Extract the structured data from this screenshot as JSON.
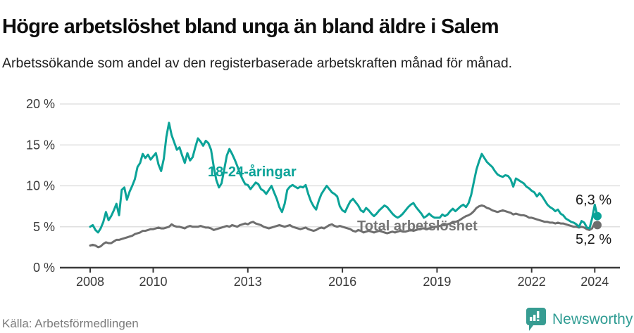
{
  "header": {
    "title": "Högre arbetslöshet bland unga än bland äldre i Salem",
    "subtitle": "Arbetssökande som andel av den registerbaserade arbetskraften månad för månad."
  },
  "footer": {
    "source": "Källa: Arbetsförmedlingen",
    "brand": "Newsworthy"
  },
  "colors": {
    "youth_line": "#0ba398",
    "total_line": "#6e6e6e",
    "grid": "#dcdcdc",
    "axis": "#3a3a3a",
    "tick_text": "#3a3a3a",
    "end_label_text": "#1a1a1a",
    "brand_teal": "#2f9c93"
  },
  "chart_data": {
    "type": "line",
    "title": "Högre arbetslöshet bland unga än bland äldre i Salem",
    "subtitle": "Arbetssökande som andel av den registerbaserade arbetskraften månad för månad.",
    "unit": "%",
    "x_start": "2008-01",
    "x_end": "2024-02",
    "x_ticks": [
      2008,
      2010,
      2013,
      2016,
      2019,
      2022,
      2024
    ],
    "y_ticks": [
      0,
      5,
      10,
      15,
      20
    ],
    "y_tick_format": "{v} %",
    "ylim": [
      0,
      20
    ],
    "grid": true,
    "legend_position": "inline-labels",
    "grid_color": "#dcdcdc",
    "axis_color": "#3a3a3a",
    "series": [
      {
        "name": "18-24-åringar",
        "color": "#0ba398",
        "end_label": "6,3 %",
        "end_value": 6.3,
        "values": [
          5.0,
          5.2,
          4.6,
          4.3,
          4.8,
          5.6,
          6.8,
          5.8,
          6.3,
          7.0,
          7.8,
          6.4,
          9.5,
          9.8,
          8.3,
          9.3,
          10.0,
          10.8,
          12.3,
          12.8,
          13.9,
          13.4,
          13.8,
          13.2,
          13.6,
          14.0,
          12.6,
          11.8,
          13.3,
          16.0,
          17.7,
          16.2,
          15.3,
          14.4,
          14.7,
          13.7,
          12.8,
          14.0,
          13.1,
          13.5,
          14.7,
          15.8,
          15.4,
          14.9,
          15.5,
          15.2,
          14.4,
          12.4,
          10.7,
          9.8,
          10.3,
          12.0,
          13.7,
          14.5,
          13.9,
          13.2,
          12.4,
          11.5,
          10.8,
          10.2,
          10.1,
          9.6,
          10.0,
          10.4,
          10.2,
          9.6,
          9.4,
          9.0,
          9.5,
          10.0,
          9.2,
          8.4,
          7.4,
          6.8,
          7.8,
          9.5,
          9.9,
          10.1,
          9.9,
          9.7,
          9.9,
          9.8,
          10.1,
          9.0,
          8.1,
          7.5,
          7.1,
          8.2,
          9.0,
          9.5,
          10.0,
          9.6,
          9.2,
          9.0,
          8.7,
          7.5,
          7.0,
          6.8,
          7.5,
          8.1,
          8.4,
          8.0,
          7.6,
          7.0,
          6.8,
          7.3,
          7.0,
          6.6,
          6.3,
          6.6,
          7.0,
          7.3,
          7.6,
          7.4,
          7.0,
          6.6,
          6.3,
          6.1,
          6.3,
          6.6,
          7.0,
          7.4,
          7.7,
          7.9,
          7.4,
          7.0,
          6.6,
          6.1,
          6.3,
          6.6,
          6.3,
          6.1,
          6.1,
          6.1,
          6.5,
          6.3,
          6.5,
          6.9,
          7.2,
          6.9,
          7.2,
          7.5,
          7.7,
          7.4,
          7.9,
          8.9,
          10.5,
          12.0,
          13.0,
          13.9,
          13.4,
          12.9,
          12.6,
          12.3,
          11.8,
          11.4,
          11.2,
          11.1,
          11.3,
          11.2,
          10.8,
          9.9,
          10.9,
          10.7,
          10.5,
          10.3,
          9.9,
          9.7,
          9.4,
          9.2,
          8.7,
          9.1,
          8.7,
          8.2,
          7.7,
          7.4,
          7.2,
          6.9,
          7.1,
          6.6,
          6.4,
          6.0,
          5.8,
          5.6,
          5.5,
          5.3,
          5.0,
          5.7,
          5.5,
          4.9,
          4.8,
          6.0,
          7.7,
          6.3
        ]
      },
      {
        "name": "Total arbetslöshet",
        "color": "#6e6e6e",
        "end_label": "5,2 %",
        "end_value": 5.2,
        "values": [
          2.7,
          2.8,
          2.7,
          2.5,
          2.6,
          2.9,
          3.1,
          3.0,
          3.0,
          3.2,
          3.4,
          3.4,
          3.5,
          3.6,
          3.7,
          3.8,
          3.9,
          4.1,
          4.2,
          4.3,
          4.5,
          4.5,
          4.6,
          4.7,
          4.7,
          4.8,
          4.9,
          4.8,
          4.8,
          4.9,
          5.0,
          5.3,
          5.1,
          5.0,
          5.0,
          4.9,
          4.8,
          5.0,
          5.1,
          5.0,
          5.0,
          5.0,
          5.1,
          5.0,
          4.9,
          4.9,
          4.8,
          4.6,
          4.7,
          4.8,
          4.9,
          5.0,
          5.1,
          5.0,
          5.2,
          5.1,
          5.0,
          5.2,
          5.3,
          5.4,
          5.3,
          5.5,
          5.6,
          5.4,
          5.3,
          5.2,
          5.0,
          4.9,
          4.8,
          4.9,
          5.0,
          5.1,
          5.2,
          5.1,
          5.0,
          5.1,
          5.2,
          5.0,
          4.9,
          4.8,
          4.7,
          4.8,
          4.9,
          4.7,
          4.6,
          4.5,
          4.6,
          4.8,
          4.9,
          4.8,
          5.0,
          5.2,
          5.3,
          5.1,
          5.0,
          5.1,
          5.0,
          4.9,
          4.8,
          4.7,
          4.5,
          4.4,
          4.6,
          4.5,
          4.3,
          4.4,
          4.5,
          4.4,
          4.3,
          4.4,
          4.5,
          4.4,
          4.3,
          4.2,
          4.3,
          4.4,
          4.3,
          4.4,
          4.5,
          4.4,
          4.4,
          4.5,
          4.6,
          4.5,
          4.6,
          4.7,
          4.8,
          4.8,
          4.7,
          4.8,
          4.9,
          5.0,
          5.0,
          5.1,
          5.2,
          5.2,
          5.3,
          5.4,
          5.6,
          5.6,
          5.7,
          5.9,
          6.1,
          6.3,
          6.4,
          6.6,
          6.9,
          7.3,
          7.5,
          7.6,
          7.5,
          7.3,
          7.2,
          7.0,
          6.9,
          6.8,
          6.9,
          7.0,
          6.9,
          6.8,
          6.7,
          6.5,
          6.6,
          6.5,
          6.4,
          6.4,
          6.3,
          6.1,
          6.1,
          6.0,
          5.9,
          5.8,
          5.7,
          5.6,
          5.6,
          5.5,
          5.5,
          5.4,
          5.5,
          5.4,
          5.4,
          5.3,
          5.2,
          5.1,
          5.0,
          5.0,
          4.9,
          5.0,
          4.9,
          4.7,
          4.6,
          4.8,
          5.5,
          5.2
        ]
      }
    ]
  }
}
